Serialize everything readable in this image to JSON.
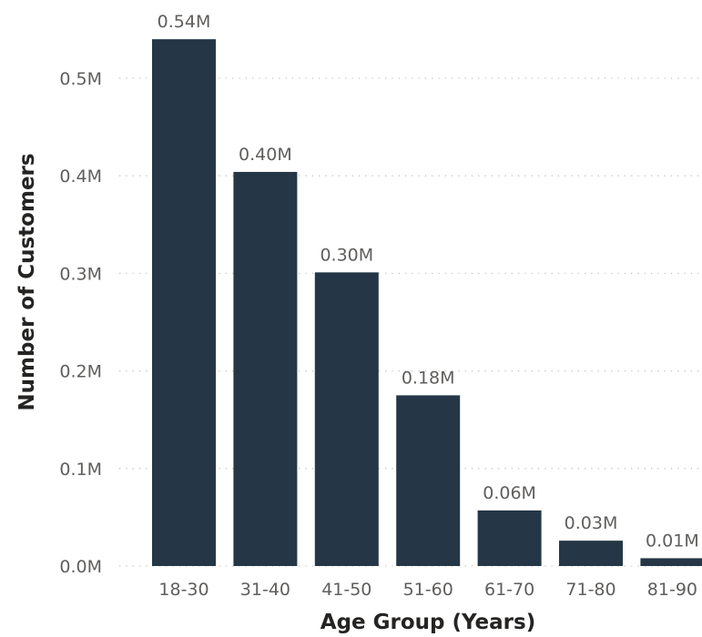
{
  "chart_data": {
    "type": "bar",
    "categories": [
      "18-30",
      "31-40",
      "41-50",
      "51-60",
      "61-70",
      "71-80",
      "81-90"
    ],
    "values": [
      0.54,
      0.404,
      0.301,
      0.175,
      0.057,
      0.026,
      0.008
    ],
    "data_labels": [
      "0.54M",
      "0.40M",
      "0.30M",
      "0.18M",
      "0.06M",
      "0.03M",
      "0.01M"
    ],
    "y_ticks": [
      0.0,
      0.1,
      0.2,
      0.3,
      0.4,
      0.5
    ],
    "y_tick_labels": [
      "0.0M",
      "0.1M",
      "0.2M",
      "0.3M",
      "0.4M",
      "0.5M"
    ],
    "ylim": [
      0,
      0.55
    ],
    "xlabel": "Age Group (Years)",
    "ylabel": "Number of Customers",
    "grid": true,
    "bar_color": "#253746"
  }
}
